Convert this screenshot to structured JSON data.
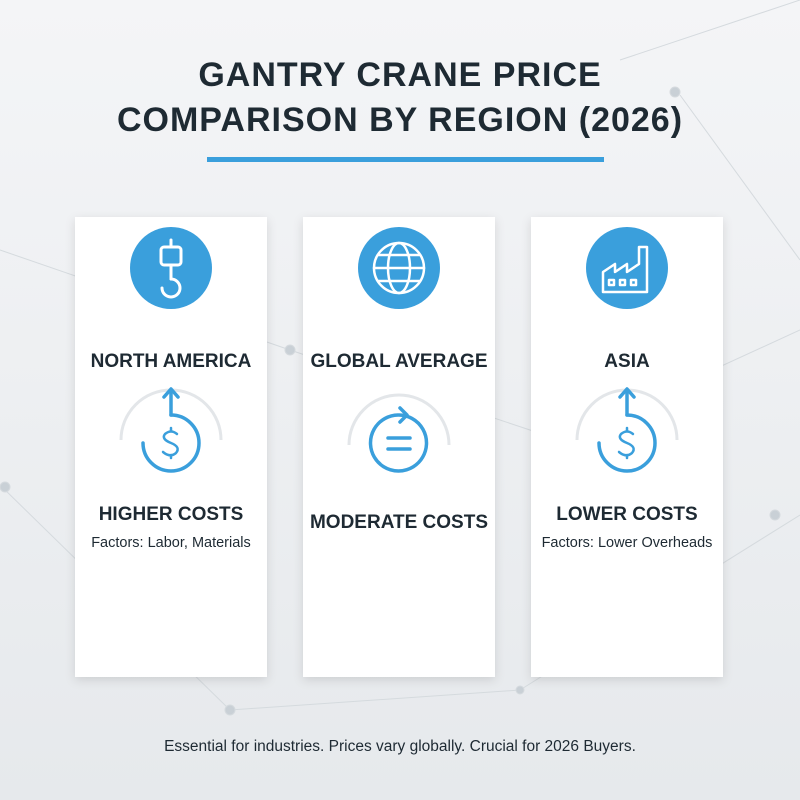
{
  "header": {
    "title_lines": [
      "GANTRY CRANE PRICE",
      "COMPARISON BY REGION (2026)"
    ]
  },
  "cards": [
    {
      "region": "NORTH AMERICA",
      "cost": "HIGHER COSTS",
      "factors": "Factors: Labor, Materials"
    },
    {
      "region": "GLOBAL AVERAGE",
      "cost": "MODERATE COSTS"
    },
    {
      "region": "ASIA",
      "cost": "LOWER COSTS",
      "factors": "Factors: Lower Overheads"
    }
  ],
  "footer": "Essential for industries. Prices vary globally. Crucial for 2026 Buyers."
}
